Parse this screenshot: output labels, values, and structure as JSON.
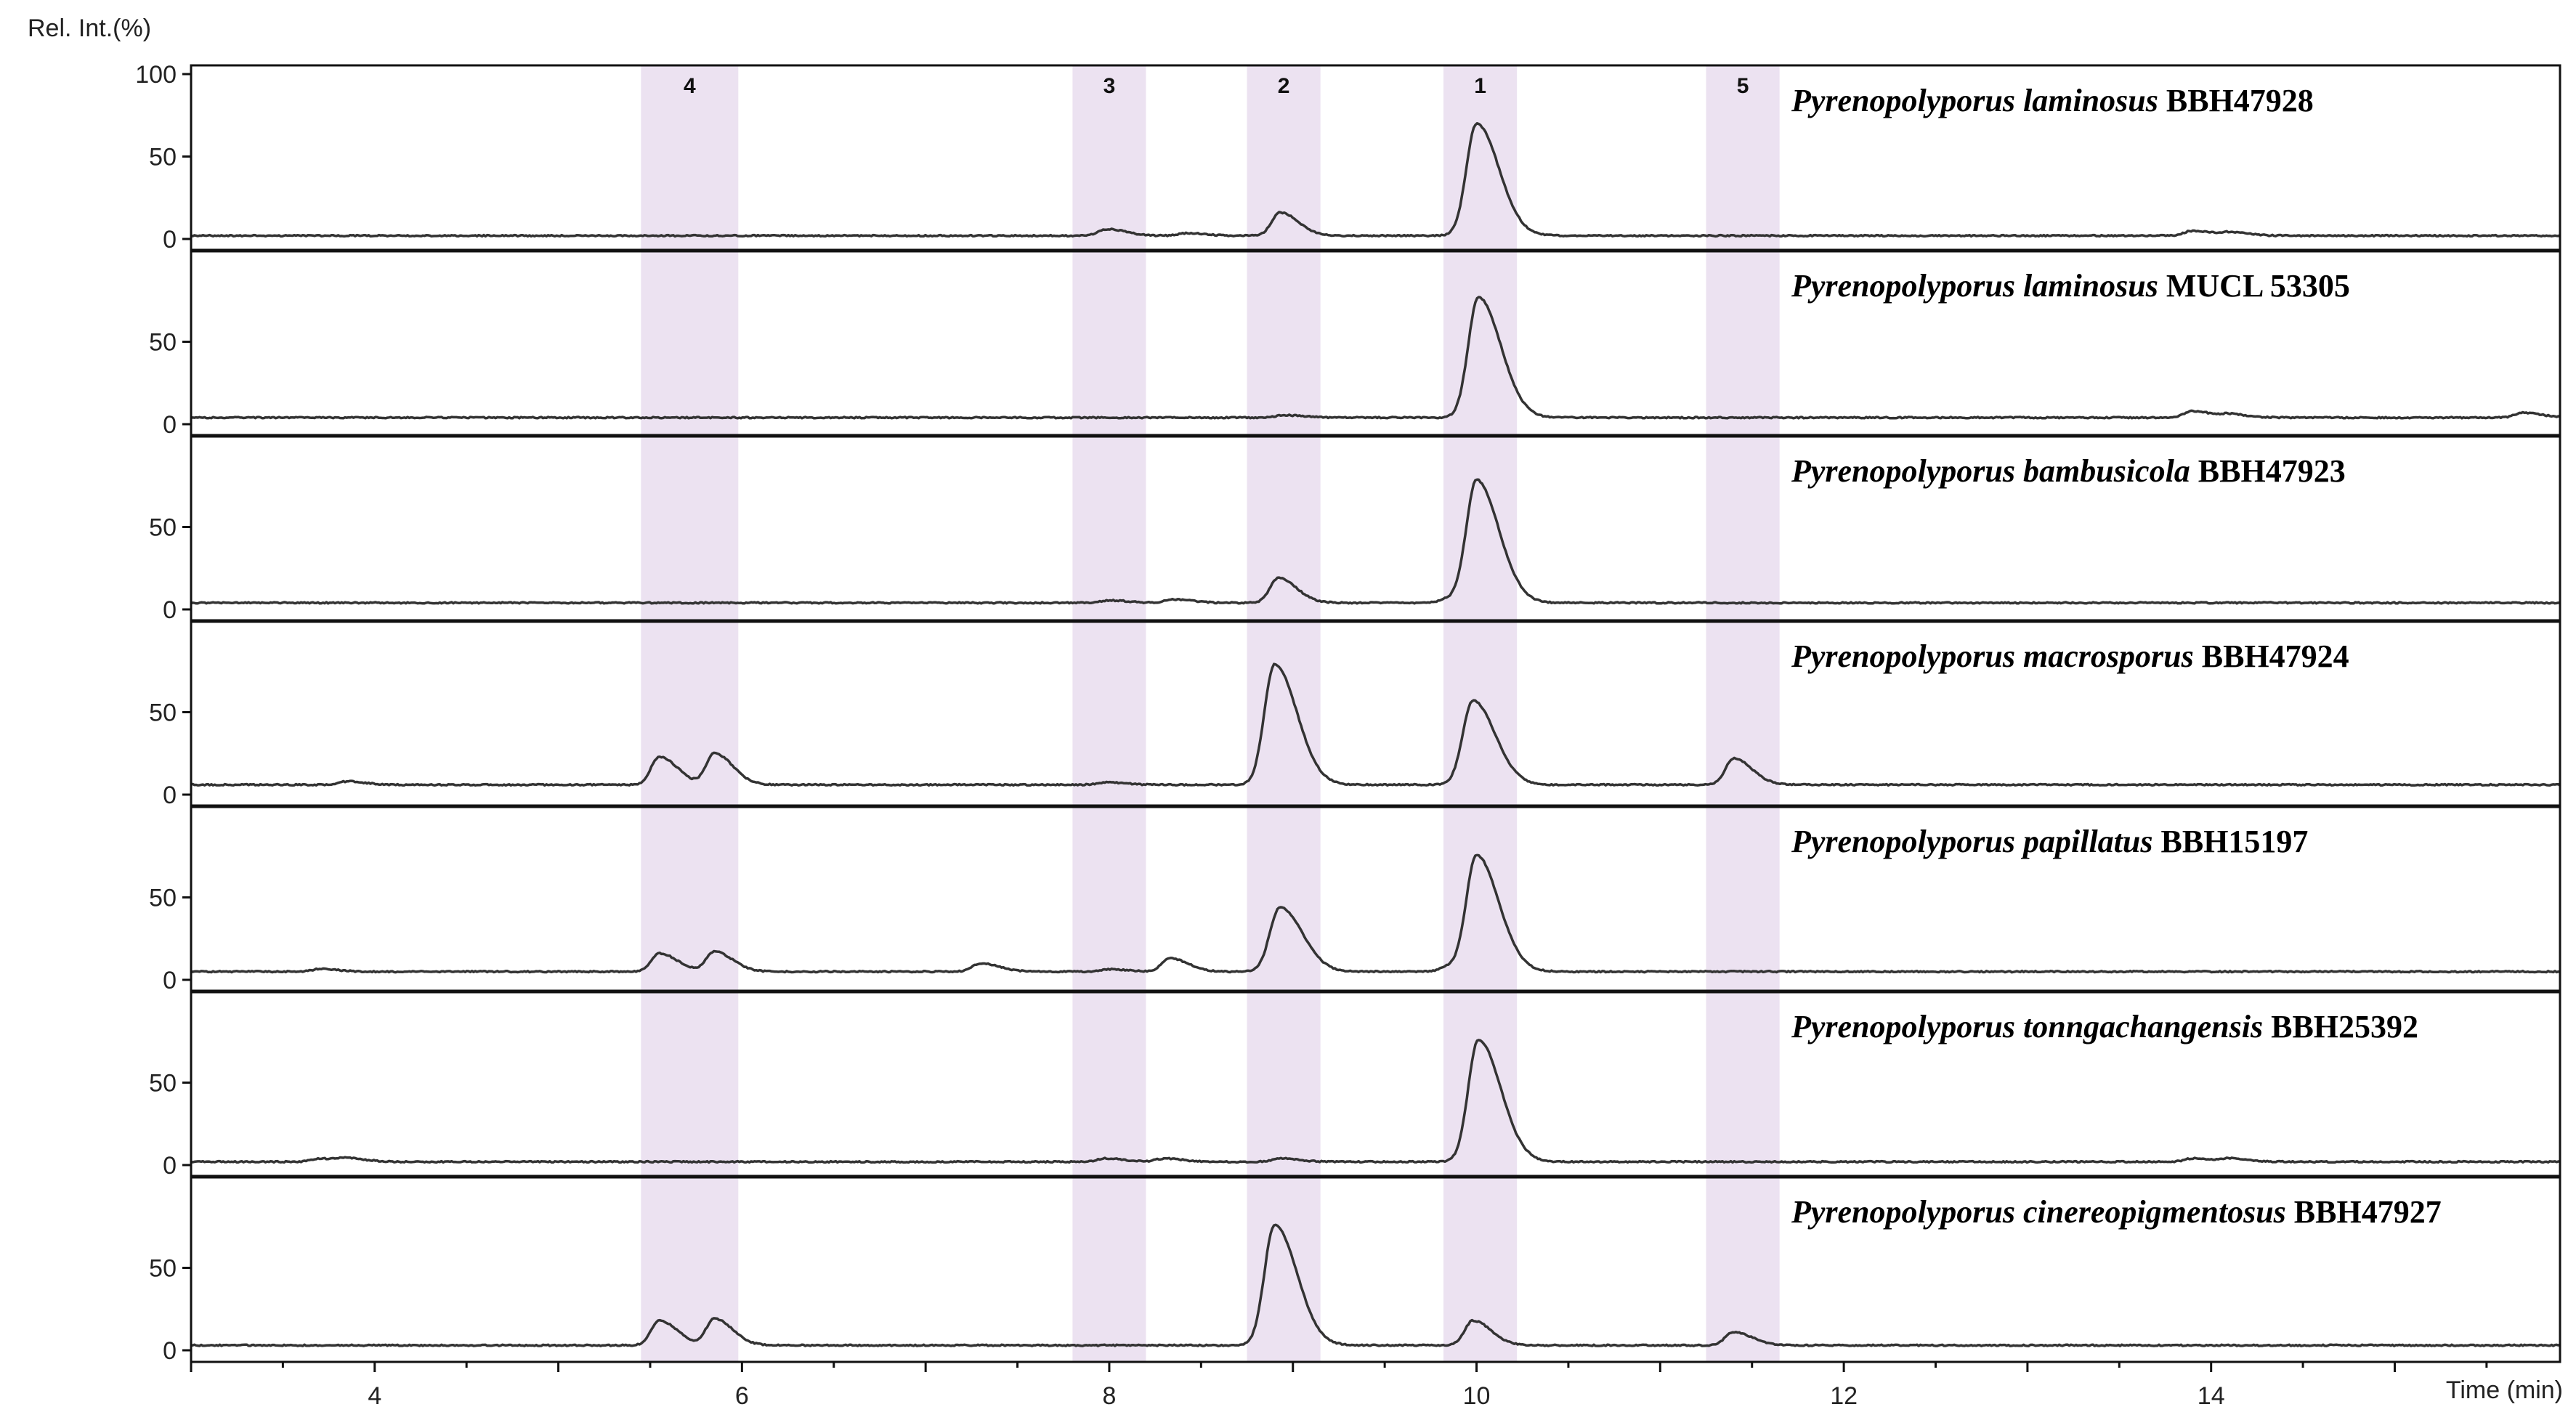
{
  "chart_data": {
    "type": "line",
    "ylabel": "Rel. Int.(%)",
    "xlabel": "Time (min)",
    "xlim": [
      3,
      15.9
    ],
    "ylim": [
      0,
      100
    ],
    "x_ticks": [
      4,
      6,
      8,
      10,
      12,
      14
    ],
    "y_ticks_first_panel": [
      100,
      50,
      0
    ],
    "y_ticks_other_panels": [
      50,
      0
    ],
    "grid": false,
    "highlight_bands": [
      {
        "label": "4",
        "x_range": [
          5.45,
          5.98
        ]
      },
      {
        "label": "3",
        "x_range": [
          7.8,
          8.2
        ]
      },
      {
        "label": "2",
        "x_range": [
          8.75,
          9.15
        ]
      },
      {
        "label": "1",
        "x_range": [
          9.82,
          10.22
        ]
      },
      {
        "label": "5",
        "x_range": [
          11.25,
          11.65
        ]
      }
    ],
    "band_color": "#ece2f1",
    "line_color": "#333333",
    "series": [
      {
        "species": "Pyrenopolyporus laminosus",
        "strain": "BBH47928",
        "baseline": 2,
        "peaks": [
          [
            7.99,
            4
          ],
          [
            8.42,
            1.5
          ],
          [
            8.93,
            14
          ],
          [
            10.0,
            68
          ],
          [
            13.9,
            3
          ],
          [
            14.1,
            2
          ]
        ]
      },
      {
        "species": "Pyrenopolyporus laminosus",
        "strain": "MUCL 53305",
        "baseline": 4,
        "peaks": [
          [
            8.95,
            1.5
          ],
          [
            10.01,
            73
          ],
          [
            13.9,
            4
          ],
          [
            14.1,
            2
          ],
          [
            15.7,
            3
          ]
        ]
      },
      {
        "species": "Pyrenopolyporus bambusicola",
        "strain": "BBH47923",
        "baseline": 4,
        "peaks": [
          [
            8.0,
            1.5
          ],
          [
            8.35,
            2
          ],
          [
            8.92,
            15
          ],
          [
            9.85,
            2.5
          ],
          [
            10.0,
            74
          ]
        ]
      },
      {
        "species": "Pyrenopolyporus macrosporus",
        "strain": "BBH47924",
        "baseline": 6,
        "peaks": [
          [
            3.85,
            2
          ],
          [
            5.55,
            17
          ],
          [
            5.85,
            19
          ],
          [
            7.98,
            1.5
          ],
          [
            8.9,
            73
          ],
          [
            9.98,
            51
          ],
          [
            11.4,
            16
          ]
        ]
      },
      {
        "species": "Pyrenopolyporus papillatus",
        "strain": "BBH15197",
        "baseline": 5,
        "peaks": [
          [
            3.7,
            1.5
          ],
          [
            5.55,
            11
          ],
          [
            5.85,
            12
          ],
          [
            7.3,
            5
          ],
          [
            8.0,
            1.5
          ],
          [
            8.33,
            8
          ],
          [
            8.93,
            39
          ],
          [
            9.85,
            3
          ],
          [
            10.0,
            70
          ]
        ]
      },
      {
        "species": "Pyrenopolyporus tonngachangensis",
        "strain": "BBH25392",
        "baseline": 2,
        "peaks": [
          [
            3.7,
            2
          ],
          [
            3.85,
            2
          ],
          [
            7.98,
            2
          ],
          [
            8.3,
            2
          ],
          [
            8.93,
            2
          ],
          [
            10.01,
            74
          ],
          [
            13.9,
            2
          ],
          [
            14.1,
            2
          ]
        ]
      },
      {
        "species": "Pyrenopolyporus cinereopigmentosus",
        "strain": "BBH47927",
        "baseline": 3,
        "peaks": [
          [
            5.55,
            15
          ],
          [
            5.85,
            16
          ],
          [
            8.9,
            73
          ],
          [
            9.98,
            15
          ],
          [
            11.4,
            8
          ]
        ]
      }
    ]
  }
}
